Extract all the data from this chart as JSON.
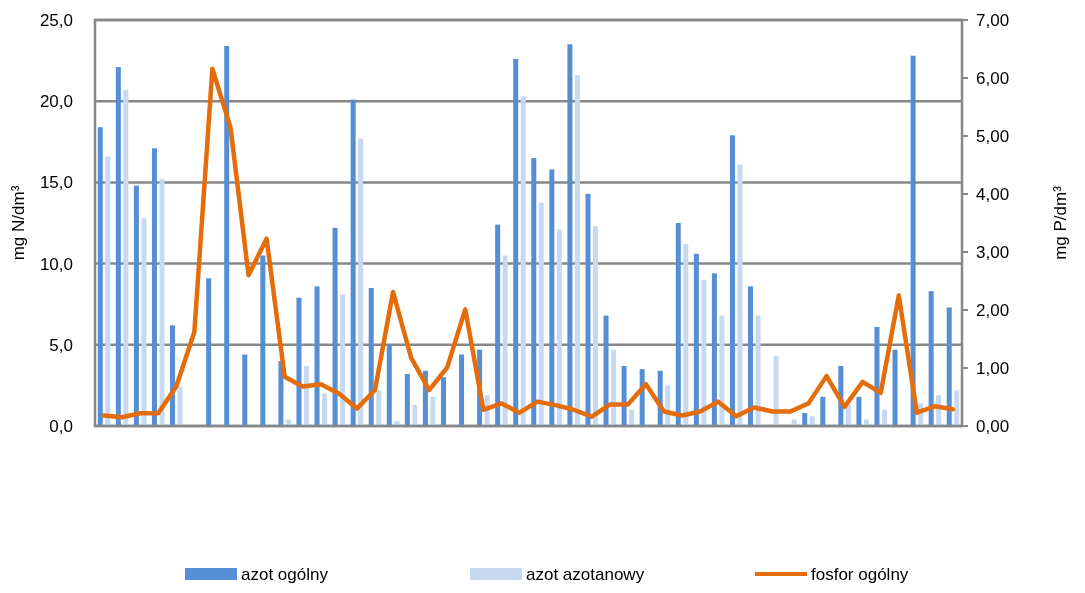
{
  "chart_data": {
    "type": "bar",
    "ylabel": "mg N/dm³",
    "y2label": "mg P/dm³",
    "categories": [
      null,
      null,
      null,
      null,
      null,
      null,
      null,
      null,
      null,
      null,
      null,
      null,
      null,
      null,
      null,
      null,
      null,
      null,
      null,
      null,
      null,
      null,
      null,
      null,
      null,
      null,
      null,
      null,
      null,
      null,
      null,
      null,
      null,
      null,
      null,
      null,
      null,
      null,
      null,
      null,
      null,
      null,
      null,
      null,
      null,
      null,
      null,
      null
    ],
    "series": [
      {
        "name": "azot ogólny",
        "color": "#558ed5",
        "values": [
          18.4,
          22.1,
          14.8,
          17.1,
          6.2,
          null,
          9.1,
          23.4,
          4.4,
          10.5,
          4.0,
          7.9,
          8.6,
          12.2,
          20.1,
          8.5,
          5.0,
          3.2,
          3.4,
          3.0,
          4.4,
          4.7,
          12.4,
          22.6,
          16.5,
          15.8,
          23.5,
          14.3,
          6.8,
          3.7,
          3.5,
          3.4,
          12.5,
          10.6,
          9.4,
          17.9,
          8.6,
          null,
          null,
          0.8,
          1.8,
          3.7,
          1.8,
          6.1,
          4.7,
          22.8,
          8.3,
          7.3
        ]
      },
      {
        "name": "azot azotanowy",
        "color": "#c6d9f1",
        "values": [
          16.6,
          20.7,
          12.8,
          15.2,
          2.4,
          null,
          null,
          null,
          null,
          null,
          0.4,
          3.7,
          2.0,
          8.1,
          17.7,
          2.2,
          0.3,
          1.3,
          1.8,
          null,
          null,
          1.9,
          10.5,
          20.3,
          13.75,
          12.1,
          21.6,
          12.3,
          4.7,
          1.0,
          null,
          2.5,
          11.2,
          9.0,
          6.8,
          16.1,
          6.8,
          4.3,
          0.4,
          0.6,
          null,
          1.3,
          0.4,
          1.0,
          null,
          1.4,
          1.9,
          2.2
        ]
      },
      {
        "name": "fosfor ogólny",
        "type": "line",
        "axis": "y2",
        "color": "#e46c0a",
        "values": [
          0.18,
          0.15,
          0.22,
          0.22,
          0.68,
          1.62,
          6.16,
          5.15,
          2.6,
          3.23,
          0.85,
          0.68,
          0.72,
          0.56,
          0.3,
          0.62,
          2.31,
          1.18,
          0.62,
          1.01,
          2.01,
          0.28,
          0.39,
          0.23,
          0.42,
          0.36,
          0.28,
          0.16,
          0.37,
          0.37,
          0.72,
          0.25,
          0.18,
          0.25,
          0.42,
          0.17,
          0.32,
          0.25,
          0.25,
          0.39,
          0.86,
          0.33,
          0.76,
          0.57,
          2.25,
          0.23,
          0.34,
          0.29
        ]
      }
    ],
    "ylim": [
      0,
      25
    ],
    "yticks": [
      {
        "value": 0,
        "label": "0,0"
      },
      {
        "value": 5,
        "label": "5,0"
      },
      {
        "value": 10,
        "label": "10,0"
      },
      {
        "value": 15,
        "label": "15,0"
      },
      {
        "value": 20,
        "label": "20,0"
      },
      {
        "value": 25,
        "label": "25,0"
      }
    ],
    "y2lim": [
      0,
      7
    ],
    "y2ticks": [
      {
        "value": 0,
        "label": "0,00"
      },
      {
        "value": 1,
        "label": "1,00"
      },
      {
        "value": 2,
        "label": "2,00"
      },
      {
        "value": 3,
        "label": "3,00"
      },
      {
        "value": 4,
        "label": "4,00"
      },
      {
        "value": 5,
        "label": "5,00"
      },
      {
        "value": 6,
        "label": "6,00"
      },
      {
        "value": 7,
        "label": "7,00"
      }
    ],
    "grid": "y",
    "legend": "bottom"
  }
}
